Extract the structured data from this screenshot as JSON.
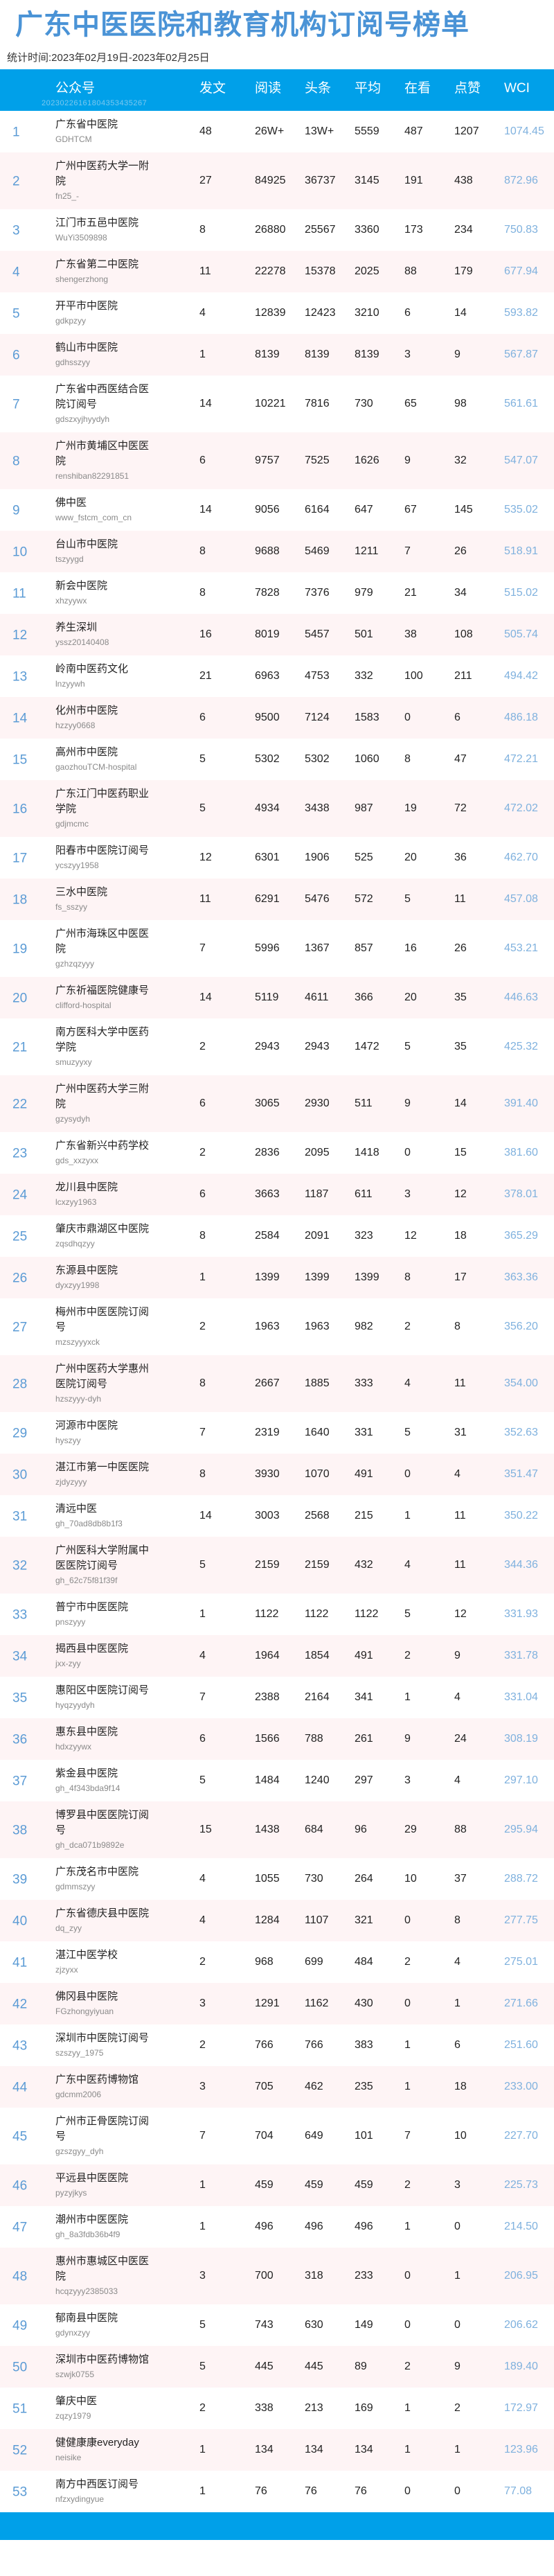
{
  "title": "广东中医医院和教育机构订阅号榜单",
  "subtitle": "统计时间:2023年02月19日-2023年02月25日",
  "header": {
    "columns": [
      "公众号",
      "发文",
      "阅读",
      "头条",
      "平均",
      "在看",
      "点赞",
      "WCI"
    ],
    "stamp": "20230226161804353435267"
  },
  "colors": {
    "header_bg": "#00a0e9",
    "title": "#4a93d6",
    "rank": "#5b9bd5",
    "wci": "#7fb1de",
    "alt_row": "#fef4f5"
  },
  "rows": [
    [
      "1",
      "广东省中医院",
      "GDHTCM",
      "48",
      "26W+",
      "13W+",
      "5559",
      "487",
      "1207",
      "1074.45"
    ],
    [
      "2",
      "广州中医药大学一附院",
      "fn25_-",
      "27",
      "84925",
      "36737",
      "3145",
      "191",
      "438",
      "872.96"
    ],
    [
      "3",
      "江门市五邑中医院",
      "WuYi3509898",
      "8",
      "26880",
      "25567",
      "3360",
      "173",
      "234",
      "750.83"
    ],
    [
      "4",
      "广东省第二中医院",
      "shengerzhong",
      "11",
      "22278",
      "15378",
      "2025",
      "88",
      "179",
      "677.94"
    ],
    [
      "5",
      "开平市中医院",
      "gdkpzyy",
      "4",
      "12839",
      "12423",
      "3210",
      "6",
      "14",
      "593.82"
    ],
    [
      "6",
      "鹤山市中医院",
      "gdhsszyy",
      "1",
      "8139",
      "8139",
      "8139",
      "3",
      "9",
      "567.87"
    ],
    [
      "7",
      "广东省中西医结合医院订阅号",
      "gdszxyjhyydyh",
      "14",
      "10221",
      "7816",
      "730",
      "65",
      "98",
      "561.61"
    ],
    [
      "8",
      "广州市黄埔区中医医院",
      "renshiban82291851",
      "6",
      "9757",
      "7525",
      "1626",
      "9",
      "32",
      "547.07"
    ],
    [
      "9",
      "佛中医",
      "www_fstcm_com_cn",
      "14",
      "9056",
      "6164",
      "647",
      "67",
      "145",
      "535.02"
    ],
    [
      "10",
      "台山市中医院",
      "tszyygd",
      "8",
      "9688",
      "5469",
      "1211",
      "7",
      "26",
      "518.91"
    ],
    [
      "11",
      "新会中医院",
      "xhzyywx",
      "8",
      "7828",
      "7376",
      "979",
      "21",
      "34",
      "515.02"
    ],
    [
      "12",
      "养生深圳",
      "yssz20140408",
      "16",
      "8019",
      "5457",
      "501",
      "38",
      "108",
      "505.74"
    ],
    [
      "13",
      "岭南中医药文化",
      "lnzyywh",
      "21",
      "6963",
      "4753",
      "332",
      "100",
      "211",
      "494.42"
    ],
    [
      "14",
      "化州市中医院",
      "hzzyy0668",
      "6",
      "9500",
      "7124",
      "1583",
      "0",
      "6",
      "486.18"
    ],
    [
      "15",
      "高州市中医院",
      "gaozhouTCM-hospital",
      "5",
      "5302",
      "5302",
      "1060",
      "8",
      "47",
      "472.21"
    ],
    [
      "16",
      "广东江门中医药职业学院",
      "gdjmcmc",
      "5",
      "4934",
      "3438",
      "987",
      "19",
      "72",
      "472.02"
    ],
    [
      "17",
      "阳春市中医院订阅号",
      "ycszyy1958",
      "12",
      "6301",
      "1906",
      "525",
      "20",
      "36",
      "462.70"
    ],
    [
      "18",
      "三水中医院",
      "fs_sszyy",
      "11",
      "6291",
      "5476",
      "572",
      "5",
      "11",
      "457.08"
    ],
    [
      "19",
      "广州市海珠区中医医院",
      "gzhzqzyyy",
      "7",
      "5996",
      "1367",
      "857",
      "16",
      "26",
      "453.21"
    ],
    [
      "20",
      "广东祈福医院健康号",
      "clifford-hospital",
      "14",
      "5119",
      "4611",
      "366",
      "20",
      "35",
      "446.63"
    ],
    [
      "21",
      "南方医科大学中医药学院",
      "smuzyyxy",
      "2",
      "2943",
      "2943",
      "1472",
      "5",
      "35",
      "425.32"
    ],
    [
      "22",
      "广州中医药大学三附院",
      "gzysydyh",
      "6",
      "3065",
      "2930",
      "511",
      "9",
      "14",
      "391.40"
    ],
    [
      "23",
      "广东省新兴中药学校",
      "gds_xxzyxx",
      "2",
      "2836",
      "2095",
      "1418",
      "0",
      "15",
      "381.60"
    ],
    [
      "24",
      "龙川县中医院",
      "lcxzyy1963",
      "6",
      "3663",
      "1187",
      "611",
      "3",
      "12",
      "378.01"
    ],
    [
      "25",
      "肇庆市鼎湖区中医院",
      "zqsdhqzyy",
      "8",
      "2584",
      "2091",
      "323",
      "12",
      "18",
      "365.29"
    ],
    [
      "26",
      "东源县中医院",
      "dyxzyy1998",
      "1",
      "1399",
      "1399",
      "1399",
      "8",
      "17",
      "363.36"
    ],
    [
      "27",
      "梅州市中医医院订阅号",
      "mzszyyyxck",
      "2",
      "1963",
      "1963",
      "982",
      "2",
      "8",
      "356.20"
    ],
    [
      "28",
      "广州中医药大学惠州医院订阅号",
      "hzszyyy-dyh",
      "8",
      "2667",
      "1885",
      "333",
      "4",
      "11",
      "354.00"
    ],
    [
      "29",
      "河源市中医院",
      "hyszyy",
      "7",
      "2319",
      "1640",
      "331",
      "5",
      "31",
      "352.63"
    ],
    [
      "30",
      "湛江市第一中医医院",
      "zjdyzyyy",
      "8",
      "3930",
      "1070",
      "491",
      "0",
      "4",
      "351.47"
    ],
    [
      "31",
      "清远中医",
      "gh_70ad8db8b1f3",
      "14",
      "3003",
      "2568",
      "215",
      "1",
      "11",
      "350.22"
    ],
    [
      "32",
      "广州医科大学附属中医医院订阅号",
      "gh_62c75f81f39f",
      "5",
      "2159",
      "2159",
      "432",
      "4",
      "11",
      "344.36"
    ],
    [
      "33",
      "普宁市中医医院",
      "pnszyyy",
      "1",
      "1122",
      "1122",
      "1122",
      "5",
      "12",
      "331.93"
    ],
    [
      "34",
      "揭西县中医医院",
      "jxx-zyy",
      "4",
      "1964",
      "1854",
      "491",
      "2",
      "9",
      "331.78"
    ],
    [
      "35",
      "惠阳区中医院订阅号",
      "hyqzyydyh",
      "7",
      "2388",
      "2164",
      "341",
      "1",
      "4",
      "331.04"
    ],
    [
      "36",
      "惠东县中医院",
      "hdxzyywx",
      "6",
      "1566",
      "788",
      "261",
      "9",
      "24",
      "308.19"
    ],
    [
      "37",
      "紫金县中医院",
      "gh_4f343bda9f14",
      "5",
      "1484",
      "1240",
      "297",
      "3",
      "4",
      "297.10"
    ],
    [
      "38",
      "博罗县中医医院订阅号",
      "gh_dca071b9892e",
      "15",
      "1438",
      "684",
      "96",
      "29",
      "88",
      "295.94"
    ],
    [
      "39",
      "广东茂名市中医院",
      "gdmmszyy",
      "4",
      "1055",
      "730",
      "264",
      "10",
      "37",
      "288.72"
    ],
    [
      "40",
      "广东省德庆县中医院",
      "dq_zyy",
      "4",
      "1284",
      "1107",
      "321",
      "0",
      "8",
      "277.75"
    ],
    [
      "41",
      "湛江中医学校",
      "zjzyxx",
      "2",
      "968",
      "699",
      "484",
      "2",
      "4",
      "275.01"
    ],
    [
      "42",
      "佛冈县中医院",
      "FGzhongyiyuan",
      "3",
      "1291",
      "1162",
      "430",
      "0",
      "1",
      "271.66"
    ],
    [
      "43",
      "深圳市中医院订阅号",
      "szszyy_1975",
      "2",
      "766",
      "766",
      "383",
      "1",
      "6",
      "251.60"
    ],
    [
      "44",
      "广东中医药博物馆",
      "gdcmm2006",
      "3",
      "705",
      "462",
      "235",
      "1",
      "18",
      "233.00"
    ],
    [
      "45",
      "广州市正骨医院订阅号",
      "gzszgyy_dyh",
      "7",
      "704",
      "649",
      "101",
      "7",
      "10",
      "227.70"
    ],
    [
      "46",
      "平远县中医医院",
      "pyzyjkys",
      "1",
      "459",
      "459",
      "459",
      "2",
      "3",
      "225.73"
    ],
    [
      "47",
      "潮州市中医医院",
      "gh_8a3fdb36b4f9",
      "1",
      "496",
      "496",
      "496",
      "1",
      "0",
      "214.50"
    ],
    [
      "48",
      "惠州市惠城区中医医院",
      "hcqzyyy2385033",
      "3",
      "700",
      "318",
      "233",
      "0",
      "1",
      "206.95"
    ],
    [
      "49",
      "郁南县中医院",
      "gdynxzyy",
      "5",
      "743",
      "630",
      "149",
      "0",
      "0",
      "206.62"
    ],
    [
      "50",
      "深圳市中医药博物馆",
      "szwjk0755",
      "5",
      "445",
      "445",
      "89",
      "2",
      "9",
      "189.40"
    ],
    [
      "51",
      "肇庆中医",
      "zqzy1979",
      "2",
      "338",
      "213",
      "169",
      "1",
      "2",
      "172.97"
    ],
    [
      "52",
      "健健康康everyday",
      "neisike",
      "1",
      "134",
      "134",
      "134",
      "1",
      "1",
      "123.96"
    ],
    [
      "53",
      "南方中西医订阅号",
      "nfzxydingyue",
      "1",
      "76",
      "76",
      "76",
      "0",
      "0",
      "77.08"
    ]
  ]
}
